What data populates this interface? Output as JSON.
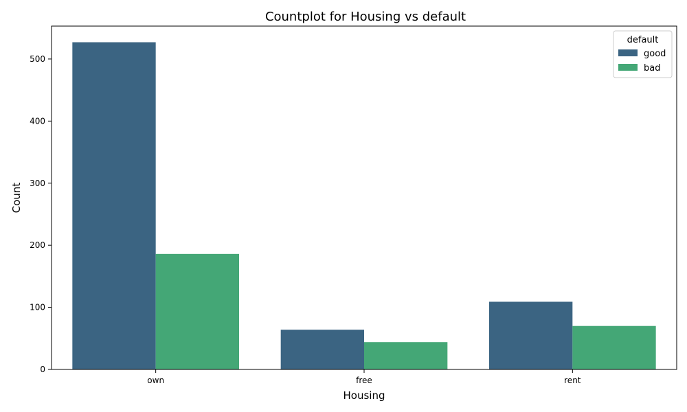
{
  "chart_data": {
    "type": "bar",
    "title": "Countplot for Housing vs default",
    "xlabel": "Housing",
    "ylabel": "Count",
    "categories": [
      "own",
      "free",
      "rent"
    ],
    "series": [
      {
        "name": "good",
        "values": [
          527,
          64,
          109
        ],
        "color": "#3b6482"
      },
      {
        "name": "bad",
        "values": [
          186,
          44,
          70
        ],
        "color": "#44a776"
      }
    ],
    "ylim": [
      0,
      553
    ],
    "yticks": [
      0,
      100,
      200,
      300,
      400,
      500
    ],
    "legend": {
      "title": "default",
      "position": "top-right"
    },
    "grid": false
  }
}
